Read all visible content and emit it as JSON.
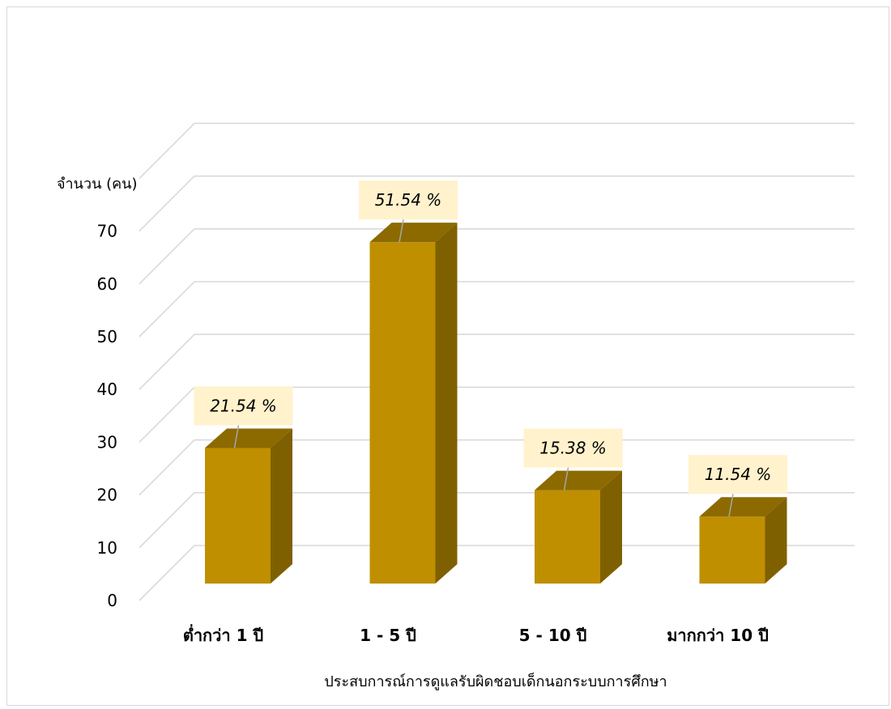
{
  "chart_data": {
    "type": "bar",
    "style": "3d-column",
    "categories": [
      "ต่ำกว่า 1 ปี",
      "1 - 5 ปี",
      "5 - 10 ปี",
      "มากกว่า 10 ปี"
    ],
    "values": [
      28,
      67,
      20,
      15
    ],
    "data_labels": [
      "21.54 %",
      "51.54 %",
      "15.38 %",
      "11.54 %"
    ],
    "title": "",
    "xlabel": "ประสบการณ์การดูแลรับผิดชอบเด็กนอกระบบการศึกษา",
    "ylabel": "จำนวน (คน)",
    "ylim": [
      0,
      70
    ],
    "yticks": [
      0,
      10,
      20,
      30,
      40,
      50,
      60,
      70
    ],
    "grid": true,
    "legend": "none",
    "colors": {
      "bar_front": "#BF8F00",
      "bar_top": "#8C6A00",
      "bar_side": "#7F6000",
      "gridline": "#D9D9D9",
      "label_fill": "#FFF2CC",
      "leader_line": "#A6A6A6"
    }
  }
}
